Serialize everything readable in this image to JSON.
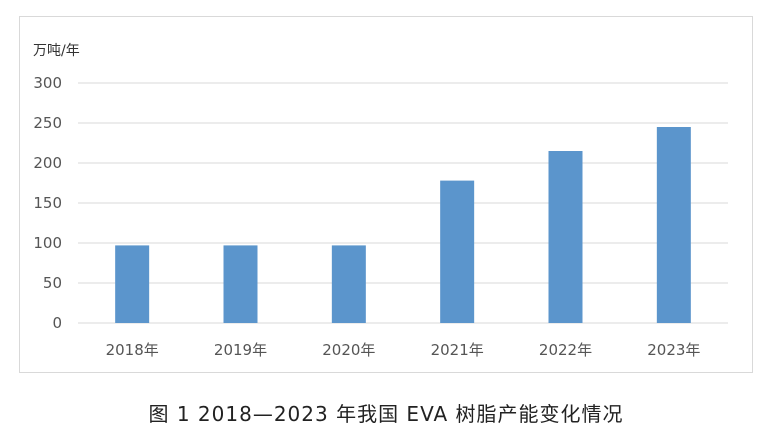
{
  "caption": "图 1  2018—2023 年我国 EVA 树脂产能变化情况",
  "chart_data": {
    "type": "bar",
    "categories": [
      "2018年",
      "2019年",
      "2020年",
      "2021年",
      "2022年",
      "2023年"
    ],
    "values": [
      97,
      97,
      97,
      178,
      215,
      245
    ],
    "ylabel": "万吨/年",
    "ylim": [
      0,
      300
    ],
    "yticks": [
      0,
      50,
      100,
      150,
      200,
      250,
      300
    ],
    "grid": true,
    "bar_color": "#5b95cc",
    "grid_color": "#d9d9d9"
  }
}
